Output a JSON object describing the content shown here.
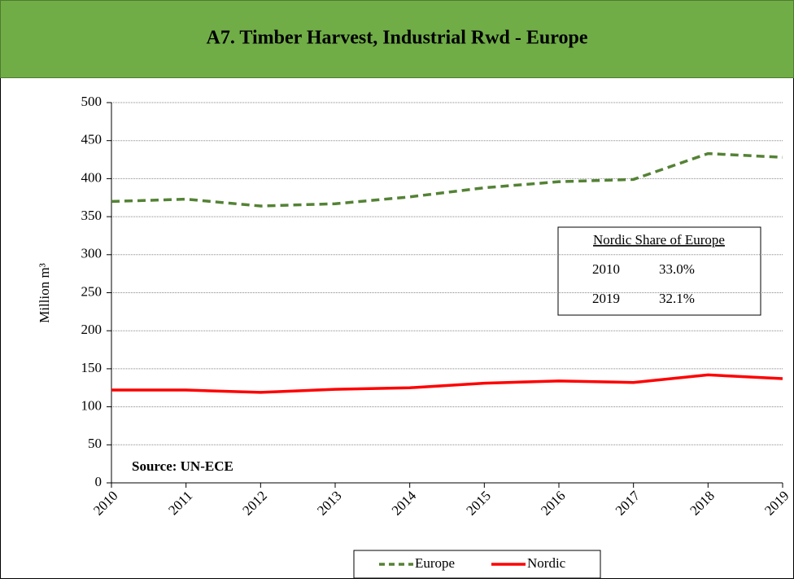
{
  "chart_data": {
    "type": "line",
    "title": "A7. Timber Harvest, Industrial Rwd - Europe",
    "y_label": "Million m³",
    "source": "Source: UN-ECE",
    "x": [
      2010,
      2011,
      2012,
      2013,
      2014,
      2015,
      2016,
      2017,
      2018,
      2019
    ],
    "xlim": [
      2010,
      2019
    ],
    "xticks": [
      2010,
      2011,
      2012,
      2013,
      2014,
      2015,
      2016,
      2017,
      2018,
      2019
    ],
    "ylim": [
      0,
      500
    ],
    "yticks": [
      0,
      50,
      100,
      150,
      200,
      250,
      300,
      350,
      400,
      450,
      500
    ],
    "grid": true,
    "legend": "bottom",
    "series": [
      {
        "name": "Europe",
        "color": "#548235",
        "dashed": true,
        "values": [
          370,
          373,
          364,
          367,
          376,
          388,
          396,
          399,
          433,
          428
        ]
      },
      {
        "name": "Nordic",
        "color": "#ff0000",
        "dashed": false,
        "values": [
          122,
          122,
          119,
          123,
          125,
          131,
          134,
          132,
          142,
          137
        ]
      }
    ],
    "inset": {
      "title": "Nordic Share of Europe",
      "rows": [
        [
          "2010",
          "33.0%"
        ],
        [
          "2019",
          "32.1%"
        ]
      ]
    }
  }
}
